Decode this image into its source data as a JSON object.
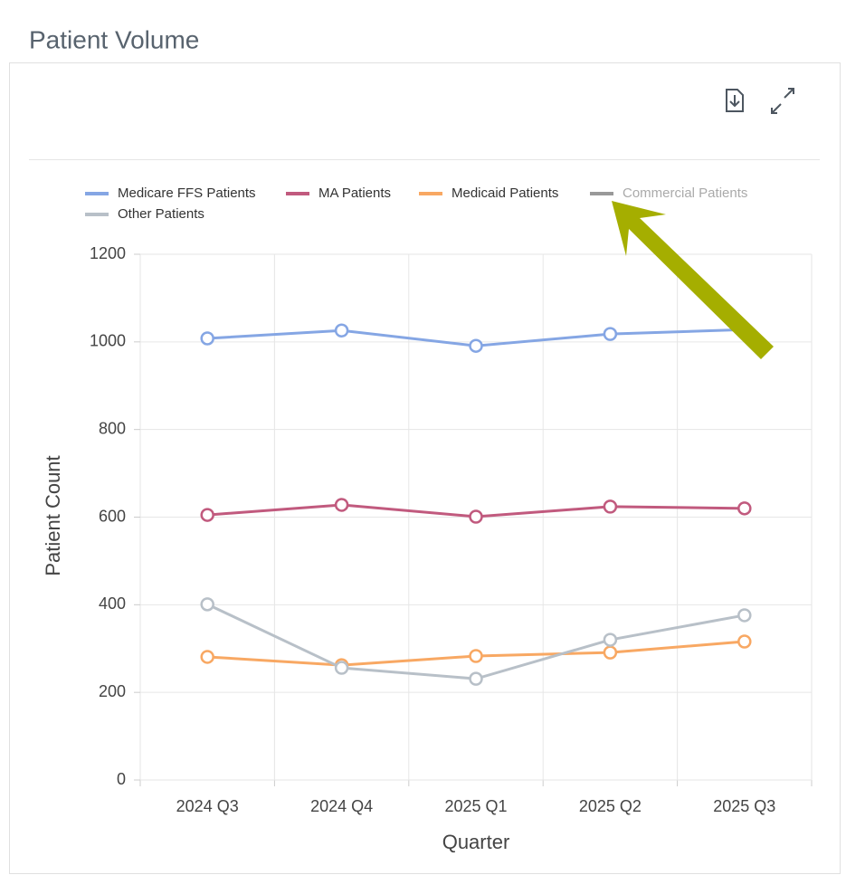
{
  "header": {
    "title": "Patient Volume"
  },
  "chart_data": {
    "type": "line",
    "x_label": "Quarter",
    "y_label": "Patient Count",
    "categories": [
      "2024 Q3",
      "2024 Q4",
      "2025 Q1",
      "2025 Q2",
      "2025 Q3"
    ],
    "series": [
      {
        "name": "Medicare FFS Patients",
        "color": "#85a6e4",
        "values": [
          1008,
          1026,
          991,
          1018,
          1028
        ]
      },
      {
        "name": "MA Patients",
        "color": "#c15a7e",
        "values": [
          605,
          628,
          601,
          624,
          620
        ]
      },
      {
        "name": "Medicaid Patients",
        "color": "#f8a863",
        "values": [
          281,
          262,
          283,
          291,
          316
        ]
      },
      {
        "name": "Commercial Patients",
        "color": "#999999",
        "hidden": true,
        "values": [
          null,
          null,
          null,
          null,
          null
        ]
      },
      {
        "name": "Other Patients",
        "color": "#b8c0c8",
        "values": [
          401,
          256,
          231,
          320,
          376
        ]
      }
    ],
    "ylim": [
      0,
      1200
    ],
    "yticks": [
      0,
      200,
      400,
      600,
      800,
      1000,
      1200
    ],
    "grid": true,
    "legend": "top"
  }
}
